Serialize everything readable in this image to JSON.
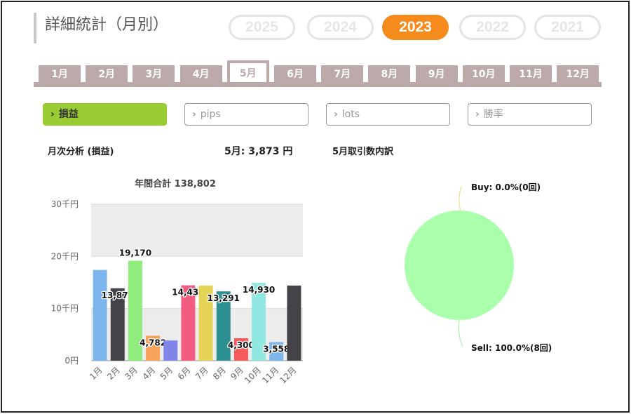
{
  "header": {
    "title": "詳細統計（月別）"
  },
  "years": [
    {
      "label": "2025",
      "active": false
    },
    {
      "label": "2024",
      "active": false
    },
    {
      "label": "2023",
      "active": true
    },
    {
      "label": "2022",
      "active": false
    },
    {
      "label": "2021",
      "active": false
    }
  ],
  "months": [
    "1月",
    "2月",
    "3月",
    "4月",
    "5月",
    "6月",
    "7月",
    "8月",
    "9月",
    "10月",
    "11月",
    "12月"
  ],
  "active_month": "5月",
  "filters": [
    {
      "label": "損益",
      "active": true
    },
    {
      "label": "pips",
      "active": false
    },
    {
      "label": "lots",
      "active": false
    },
    {
      "label": "勝率",
      "active": false
    }
  ],
  "summary": {
    "analysis_label": "月次分析 (損益)",
    "month_value": "5月:  3,873 円",
    "breakdown_label": "5月取引数内訳"
  },
  "colors": {
    "accent": "#f48b1c",
    "filter_active": "#99cc33",
    "tab": "#bcaaaa",
    "pie": "#aaffaa"
  },
  "chart_data": [
    {
      "type": "bar",
      "title": "年間合計 138,802",
      "categories": [
        "1月",
        "2月",
        "3月",
        "4月",
        "5月",
        "6月",
        "7月",
        "8月",
        "9月",
        "10月",
        "11月",
        "12月"
      ],
      "values": [
        17400,
        13876,
        19170,
        4782,
        3873,
        14437,
        14400,
        13291,
        4300,
        14930,
        3558,
        14400
      ],
      "data_labels": [
        "",
        "13,876",
        "19,170",
        "4,782",
        "",
        "14,437",
        "",
        "13,291",
        "4,300",
        "14,930",
        "3,558",
        ""
      ],
      "colors": [
        "#7cb5ec",
        "#434348",
        "#90ed7d",
        "#f7a35c",
        "#8085e9",
        "#f15c80",
        "#e4d354",
        "#2b908f",
        "#f45b5b",
        "#91e8e1",
        "#7cb5ec",
        "#434348"
      ],
      "yticks": [
        "0円",
        "10千円",
        "20千円",
        "30千円"
      ],
      "ylim": [
        0,
        30000
      ],
      "grid": true
    },
    {
      "type": "pie",
      "slices": [
        {
          "label": "Buy: 0.0%(0回)",
          "value": 0.0
        },
        {
          "label": "Sell: 100.0%(8回)",
          "value": 100.0
        }
      ]
    }
  ]
}
